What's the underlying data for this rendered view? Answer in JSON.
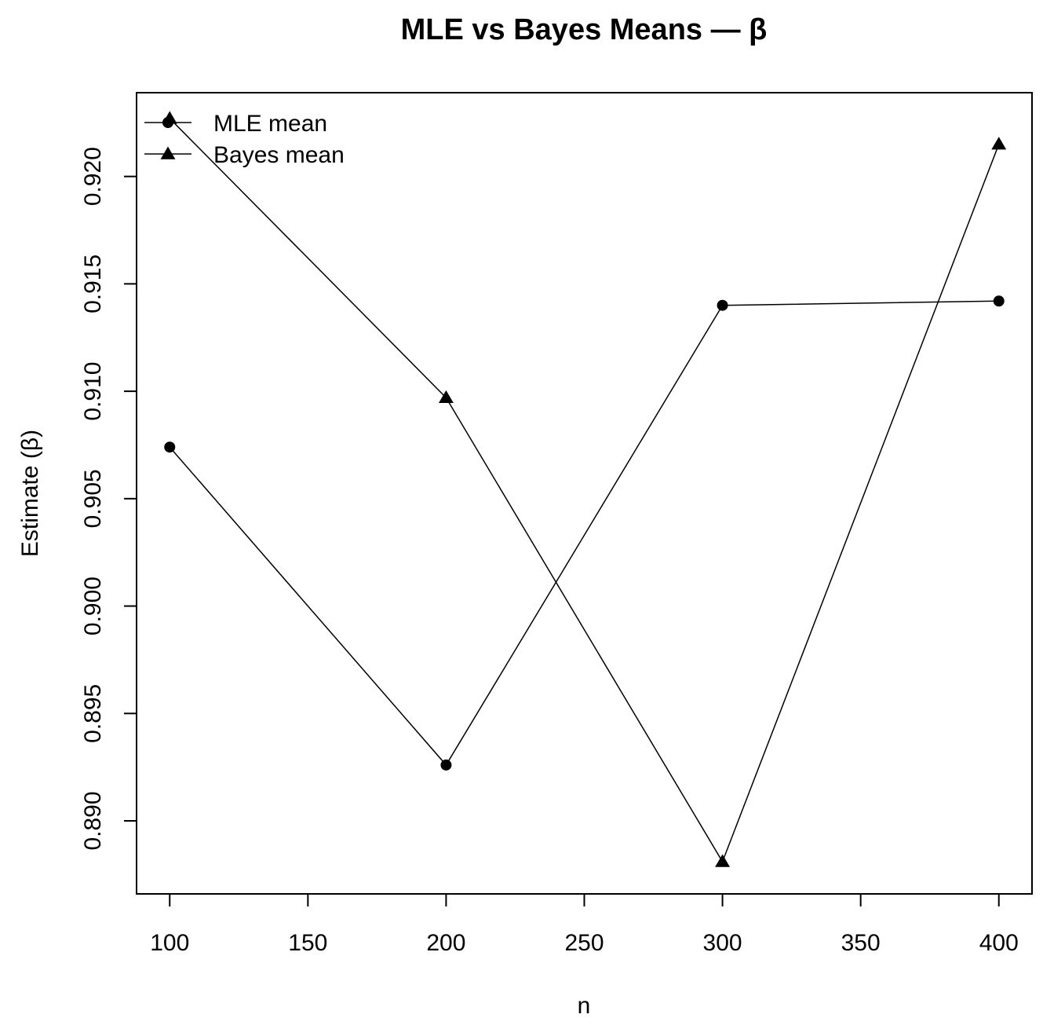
{
  "chart_data": {
    "type": "line",
    "title": "MLE vs Bayes Means — β",
    "xlabel": "n",
    "ylabel": "Estimate (β)",
    "x": [
      100,
      200,
      300,
      400
    ],
    "xticks": [
      "100",
      "150",
      "200",
      "250",
      "300",
      "350",
      "400"
    ],
    "xtick_values": [
      100,
      150,
      200,
      250,
      300,
      350,
      400
    ],
    "yticks": [
      "0.890",
      "0.895",
      "0.900",
      "0.905",
      "0.910",
      "0.915",
      "0.920"
    ],
    "ytick_values": [
      0.89,
      0.895,
      0.9,
      0.905,
      0.91,
      0.915,
      0.92
    ],
    "xlim": [
      88,
      412
    ],
    "ylim": [
      0.8866,
      0.9239
    ],
    "grid": false,
    "legend_position": "top-left",
    "series": [
      {
        "name": "MLE mean",
        "marker": "circle",
        "values": [
          0.9074,
          0.8926,
          0.914,
          0.9142
        ]
      },
      {
        "name": "Bayes mean",
        "marker": "triangle",
        "values": [
          0.9227,
          0.9097,
          0.8881,
          0.9215
        ]
      }
    ]
  }
}
